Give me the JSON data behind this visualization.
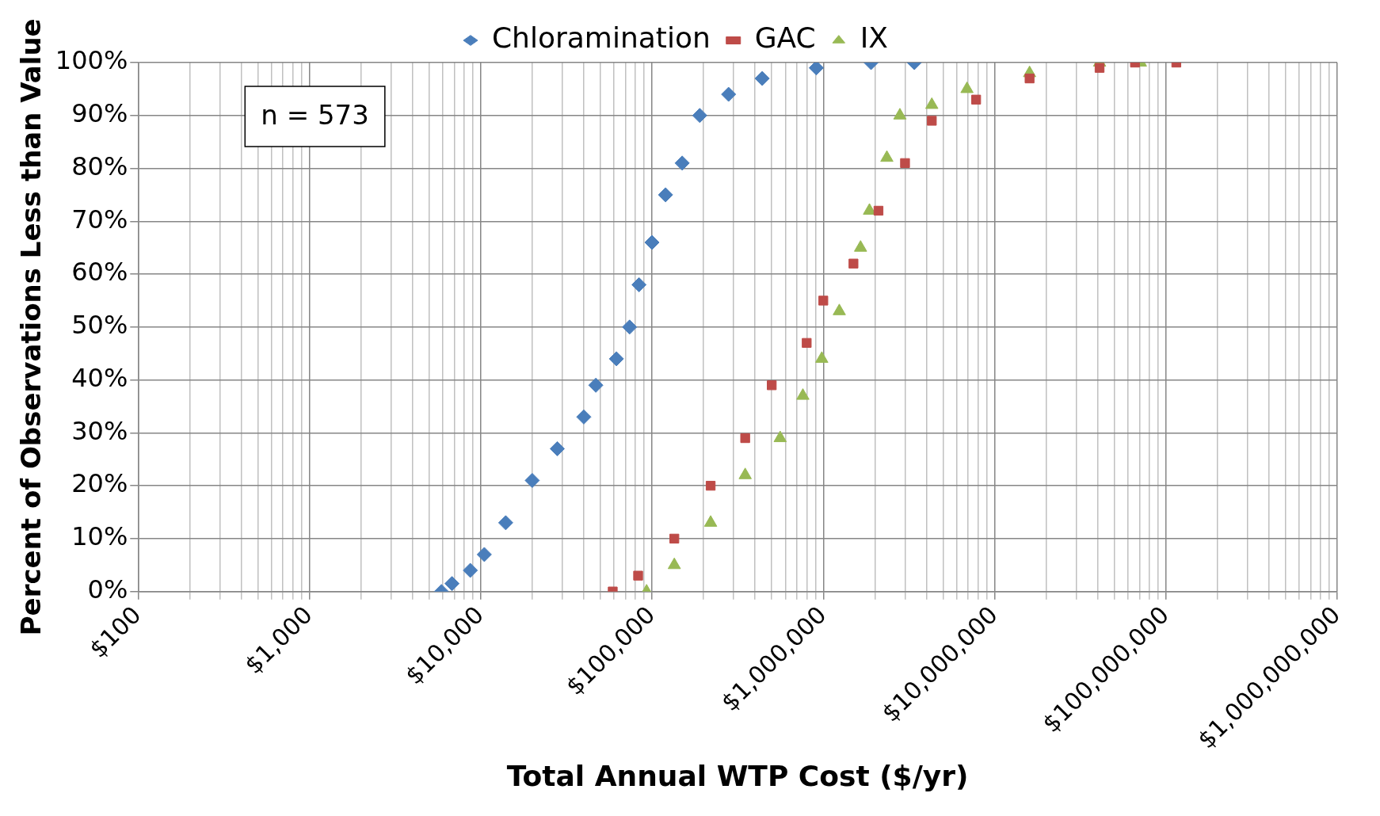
{
  "chart_data": {
    "type": "scatter",
    "xlabel": "Total Annual WTP Cost ($/yr)",
    "ylabel": "Percent of Observations Less than Value",
    "log": "x",
    "grid": true,
    "legend": "top",
    "annotations": [
      "n = 573"
    ],
    "xlim": [
      100,
      1000000000
    ],
    "xticks": [
      {
        "value": 100,
        "label": "$100"
      },
      {
        "value": 200,
        "label": null
      },
      {
        "value": 300,
        "label": null
      },
      {
        "value": 400,
        "label": null
      },
      {
        "value": 500,
        "label": null
      },
      {
        "value": 600,
        "label": null
      },
      {
        "value": 700,
        "label": null
      },
      {
        "value": 800,
        "label": null
      },
      {
        "value": 900,
        "label": null
      },
      {
        "value": 1000,
        "label": "$1,000"
      },
      {
        "value": 2000,
        "label": null
      },
      {
        "value": 3000,
        "label": null
      },
      {
        "value": 4000,
        "label": null
      },
      {
        "value": 5000,
        "label": null
      },
      {
        "value": 6000,
        "label": null
      },
      {
        "value": 7000,
        "label": null
      },
      {
        "value": 8000,
        "label": null
      },
      {
        "value": 9000,
        "label": null
      },
      {
        "value": 10000,
        "label": "$10,000"
      },
      {
        "value": 20000,
        "label": null
      },
      {
        "value": 30000,
        "label": null
      },
      {
        "value": 40000,
        "label": null
      },
      {
        "value": 50000,
        "label": null
      },
      {
        "value": 60000,
        "label": null
      },
      {
        "value": 70000,
        "label": null
      },
      {
        "value": 80000,
        "label": null
      },
      {
        "value": 90000,
        "label": null
      },
      {
        "value": 100000,
        "label": "$100,000"
      },
      {
        "value": 200000,
        "label": null
      },
      {
        "value": 300000,
        "label": null
      },
      {
        "value": 400000,
        "label": null
      },
      {
        "value": 500000,
        "label": null
      },
      {
        "value": 600000,
        "label": null
      },
      {
        "value": 700000,
        "label": null
      },
      {
        "value": 800000,
        "label": null
      },
      {
        "value": 900000,
        "label": null
      },
      {
        "value": 1000000,
        "label": "$1,000,000"
      },
      {
        "value": 2000000,
        "label": null
      },
      {
        "value": 3000000,
        "label": null
      },
      {
        "value": 4000000,
        "label": null
      },
      {
        "value": 5000000,
        "label": null
      },
      {
        "value": 6000000,
        "label": null
      },
      {
        "value": 7000000,
        "label": null
      },
      {
        "value": 8000000,
        "label": null
      },
      {
        "value": 9000000,
        "label": null
      },
      {
        "value": 10000000,
        "label": "$10,000,000"
      },
      {
        "value": 20000000,
        "label": null
      },
      {
        "value": 30000000,
        "label": null
      },
      {
        "value": 40000000,
        "label": null
      },
      {
        "value": 50000000,
        "label": null
      },
      {
        "value": 60000000,
        "label": null
      },
      {
        "value": 70000000,
        "label": null
      },
      {
        "value": 80000000,
        "label": null
      },
      {
        "value": 90000000,
        "label": null
      },
      {
        "value": 100000000,
        "label": "$100,000,000"
      },
      {
        "value": 200000000,
        "label": null
      },
      {
        "value": 300000000,
        "label": null
      },
      {
        "value": 400000000,
        "label": null
      },
      {
        "value": 500000000,
        "label": null
      },
      {
        "value": 600000000,
        "label": null
      },
      {
        "value": 700000000,
        "label": null
      },
      {
        "value": 800000000,
        "label": null
      },
      {
        "value": 900000000,
        "label": null
      },
      {
        "value": 1000000000,
        "label": "$1,000,000,000"
      }
    ],
    "ylim": [
      0,
      100
    ],
    "yticks": [
      {
        "value": 0,
        "label": "0%"
      },
      {
        "value": 10,
        "label": "10%"
      },
      {
        "value": 20,
        "label": "20%"
      },
      {
        "value": 30,
        "label": "30%"
      },
      {
        "value": 40,
        "label": "40%"
      },
      {
        "value": 50,
        "label": "50%"
      },
      {
        "value": 60,
        "label": "60%"
      },
      {
        "value": 70,
        "label": "70%"
      },
      {
        "value": 80,
        "label": "80%"
      },
      {
        "value": 90,
        "label": "90%"
      },
      {
        "value": 100,
        "label": "100%"
      }
    ],
    "series": [
      {
        "name": "Chloramination",
        "color": "#4a7ebb",
        "marker": "diamond",
        "x": [
          5900,
          6800,
          8700,
          10500,
          14000,
          20000,
          28000,
          40000,
          47000,
          62000,
          74000,
          84000,
          100000,
          120000,
          150000,
          190000,
          280000,
          440000,
          910000,
          1900000,
          3400000
        ],
        "values": [
          0,
          1.5,
          4,
          7,
          13,
          21,
          27,
          33,
          39,
          44,
          50,
          58,
          66,
          75,
          81,
          90,
          94,
          97,
          99,
          100,
          100
        ]
      },
      {
        "name": "GAC",
        "color": "#be4b48",
        "marker": "square",
        "x": [
          59000,
          83000,
          135000,
          220000,
          350000,
          500000,
          800000,
          1000000,
          1500000,
          2100000,
          3000000,
          4300000,
          7800000,
          16000000,
          41000000,
          66000000,
          115000000
        ],
        "values": [
          0,
          3,
          10,
          20,
          29,
          39,
          47,
          55,
          62,
          72,
          81,
          89,
          93,
          97,
          99,
          100,
          100
        ]
      },
      {
        "name": "IX",
        "color": "#98b954",
        "marker": "triangle",
        "x": [
          93000,
          135000,
          220000,
          350000,
          560000,
          760000,
          980000,
          1240000,
          1650000,
          1860000,
          2350000,
          2800000,
          4300000,
          6900000,
          16000000,
          41000000,
          71000000
        ],
        "values": [
          0,
          5,
          13,
          22,
          29,
          37,
          44,
          53,
          65,
          72,
          82,
          90,
          92,
          95,
          98,
          100,
          100
        ]
      }
    ]
  }
}
